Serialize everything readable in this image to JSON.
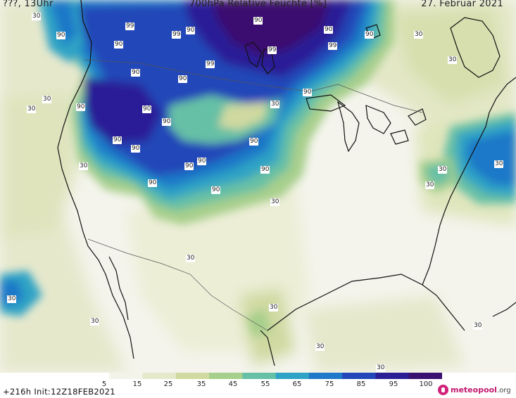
{
  "header": {
    "left": "???, 13Uhr",
    "title": "700hPa Relative Feuchte [%]",
    "date": "27. Februar 2021"
  },
  "map": {
    "contour_labels": [
      "90",
      "99",
      "99",
      "90",
      "90",
      "30",
      "90",
      "99",
      "90",
      "99",
      "90",
      "99",
      "90",
      "30",
      "30",
      "90",
      "90",
      "30",
      "90",
      "30",
      "90",
      "90",
      "90",
      "90",
      "90",
      "90",
      "90",
      "90",
      "90",
      "30",
      "90",
      "30",
      "30",
      "30",
      "30",
      "30",
      "30",
      "30",
      "30",
      "30",
      "30",
      "30",
      "30",
      "90",
      "30"
    ],
    "colors": {
      "water": "#f2f2ee",
      "rh_5": "#ffffff",
      "rh_15": "#f3f3ea",
      "rh_25": "#e6e8cc",
      "rh_35": "#cfd9a0",
      "rh_45": "#a7cf8c",
      "rh_55": "#66c0a5",
      "rh_65": "#2fa3c5",
      "rh_75": "#1f78c8",
      "rh_85": "#2346b8",
      "rh_95": "#2b1f96",
      "rh_100": "#3a1070",
      "coast": "#111111",
      "border": "#555555"
    }
  },
  "legend": {
    "ticks": [
      "5",
      "15",
      "25",
      "35",
      "45",
      "55",
      "65",
      "75",
      "85",
      "95",
      "100"
    ]
  },
  "footer": {
    "run": "+216h Init:12Z18FEB2021",
    "logo_main": "meteopool",
    "logo_suffix": ".org"
  }
}
